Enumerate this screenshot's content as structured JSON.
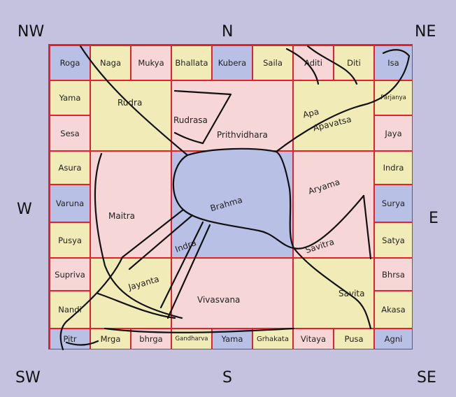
{
  "directions": {
    "nw": "NW",
    "n": "N",
    "ne": "NE",
    "w": "W",
    "e": "E",
    "sw": "SW",
    "s": "S",
    "se": "SE"
  },
  "top_row": [
    "Roga",
    "Naga",
    "Mukya",
    "Bhallata",
    "Kubera",
    "Saila",
    "Aditi",
    "Diti",
    "Isa"
  ],
  "left_col": [
    "Yama",
    "Sesa",
    "Asura",
    "Varuna",
    "Pusya",
    "Supriva",
    "Nandi"
  ],
  "right_col": [
    "Parjanya",
    "Jaya",
    "Indra",
    "Surya",
    "Satya",
    "Bhrsa",
    "Akasa"
  ],
  "bottom_row": [
    "Pitr",
    "Mrga",
    "bhrga",
    "Gandharva",
    "Yama",
    "Grhakata",
    "Vitaya",
    "Pusa",
    "Agni"
  ],
  "inner": {
    "rudra": "Rudra",
    "rudrasa": "Rudrasa",
    "prithvidhara": "Prithvidhara",
    "apa": "Apa",
    "apavatsa": "Apavatsa",
    "maitra": "Maitra",
    "brahma": "Brahma",
    "aryama": "Aryama",
    "indra": "Indra",
    "savitra": "Savitra",
    "jayanta": "Jayanta",
    "vivasvana": "Vivasvana",
    "savita": "Savita"
  }
}
